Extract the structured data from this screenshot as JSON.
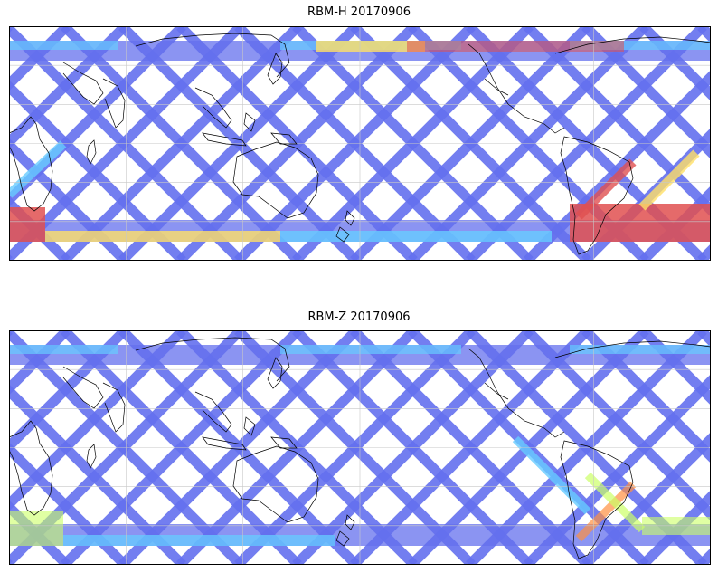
{
  "panels": [
    {
      "title": "RBM-H 20170906",
      "mode": "H",
      "colors": {
        "track": "#6470ee",
        "high": "#e05050",
        "mid": "#ffe066",
        "low": "#66ccff"
      }
    },
    {
      "title": "RBM-Z 20170906",
      "mode": "Z",
      "colors": {
        "track": "#6470ee",
        "high": "#ff9040",
        "mid": "#ccff66",
        "low": "#66ccff"
      }
    }
  ],
  "map": {
    "projection": "equirectangular",
    "coastline_color": "#000000",
    "grid_color": "#c8c8c8"
  }
}
